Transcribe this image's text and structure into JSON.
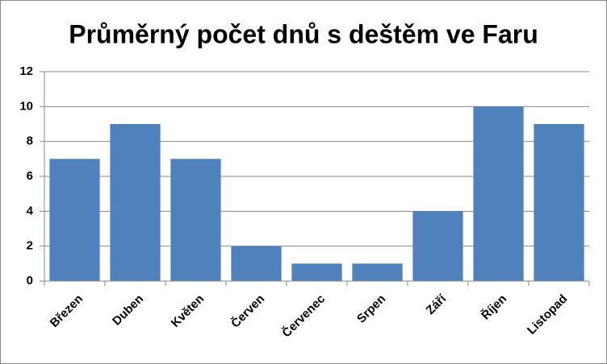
{
  "chart_data": {
    "type": "bar",
    "title": "Průměrný počet dnů s deštěm ve Faru",
    "categories": [
      "Březen",
      "Duben",
      "Květen",
      "Červen",
      "Červenec",
      "Srpen",
      "Září",
      "Říjen",
      "Listopad"
    ],
    "values": [
      7,
      9,
      7,
      2,
      1,
      1,
      4,
      10,
      9
    ],
    "color": "#4f81bd",
    "ylim": [
      0,
      12
    ],
    "yticks": [
      0,
      2,
      4,
      6,
      8,
      10,
      12
    ],
    "grid": true
  }
}
